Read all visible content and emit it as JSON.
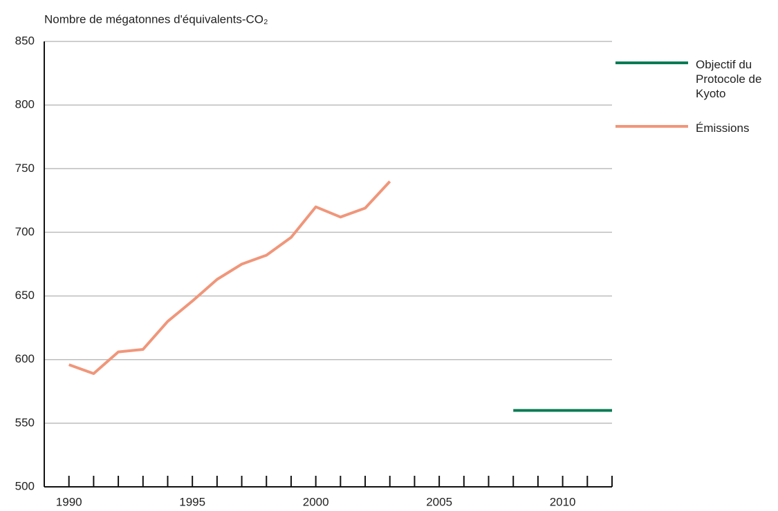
{
  "chart_data": {
    "type": "line",
    "title": "Nombre de mégatonnes d'équivalents-CO₂",
    "series": [
      {
        "name": "Objectif du Protocole de Kyoto",
        "color": "#0b7c55",
        "x": [
          2008,
          2009,
          2010,
          2011,
          2012
        ],
        "values": [
          560,
          560,
          560,
          560,
          560
        ]
      },
      {
        "name": "Émissions",
        "color": "#f0967a",
        "x": [
          1990,
          1991,
          1992,
          1993,
          1994,
          1995,
          1996,
          1997,
          1998,
          1999,
          2000,
          2001,
          2002,
          2003
        ],
        "values": [
          596,
          589,
          606,
          608,
          630,
          646,
          663,
          675,
          682,
          696,
          720,
          712,
          719,
          740
        ]
      }
    ],
    "xlim": [
      1989,
      2012
    ],
    "xticks": [
      1990,
      1995,
      2000,
      2005,
      2010
    ],
    "xminor_ticks": [
      1990,
      1991,
      1992,
      1993,
      1994,
      1995,
      1996,
      1997,
      1998,
      1999,
      2000,
      2001,
      2002,
      2003,
      2004,
      2005,
      2006,
      2007,
      2008,
      2009,
      2010,
      2011,
      2012
    ],
    "ylim": [
      500,
      850
    ],
    "yticks": [
      500,
      550,
      600,
      650,
      700,
      750,
      800,
      850
    ],
    "grid": true,
    "legend": "right"
  }
}
